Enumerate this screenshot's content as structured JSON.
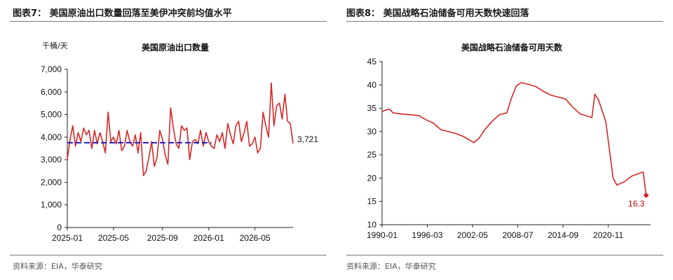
{
  "figures": {
    "left": {
      "caption": "图表7：  美国原油出口数量回落至美伊冲突前均值水平",
      "source": "资料来源：EIA，华泰研究"
    },
    "right": {
      "caption": "图表8：  美国战略石油储备可用天数快速回落",
      "source": "资料来源：EIA，华泰研究"
    }
  },
  "colors": {
    "line": "#d62728",
    "average": "#1f1fbf",
    "axis": "#222222"
  },
  "chart_data": [
    {
      "type": "line",
      "title": "美国原油出口数量",
      "ylabel": "千桶/天",
      "xlabel": "",
      "ylim": [
        0,
        7000
      ],
      "yticks": [
        "0",
        "1,000",
        "2,000",
        "3,000",
        "4,000",
        "5,000",
        "6,000",
        "7,000"
      ],
      "ytick_values": [
        0,
        1000,
        2000,
        3000,
        4000,
        5000,
        6000,
        7000
      ],
      "xlim": [
        0,
        83
      ],
      "xticks": [
        "2025-01",
        "2025-05",
        "2025-09",
        "2026-01",
        "2026-05"
      ],
      "xtick_values": [
        0,
        17,
        35,
        52,
        69
      ],
      "series": [
        {
          "style": "solid",
          "values": [
            3000,
            3900,
            4500,
            3600,
            4200,
            3800,
            4400,
            4100,
            4300,
            3500,
            4300,
            3700,
            4200,
            3800,
            3300,
            5100,
            3800,
            4000,
            3700,
            4300,
            3400,
            3600,
            4300,
            3800,
            3600,
            4100,
            3300,
            4200,
            2300,
            2500,
            3100,
            3800,
            2700,
            3100,
            4300,
            3900,
            3200,
            2800,
            5300,
            4400,
            3700,
            3500,
            4500,
            4300,
            4400,
            3000,
            3800,
            3900,
            3700,
            4300,
            3600,
            4200,
            3800,
            3600,
            3500,
            4100,
            3800,
            4200,
            3500,
            4600,
            4100,
            3700,
            4500,
            4700,
            3800,
            4200,
            4700,
            3600,
            3700,
            4000,
            3300,
            3500,
            5100,
            4500,
            4000,
            6400,
            4500,
            5400,
            5500,
            4800,
            5900,
            4700,
            4600,
            3721
          ]
        },
        {
          "style": "dashed-average",
          "x_range": [
            0,
            53
          ],
          "value": 3750
        }
      ],
      "annotations": [
        {
          "text": "3,721"
        }
      ]
    },
    {
      "type": "line",
      "title": "美国战略石油储备可用天数",
      "ylim": [
        10,
        45
      ],
      "yticks": [
        "10",
        "15",
        "20",
        "25",
        "30",
        "35",
        "40",
        "45"
      ],
      "ytick_values": [
        10,
        15,
        20,
        25,
        30,
        35,
        40,
        45
      ],
      "xlim": [
        1990.0,
        2026.6
      ],
      "xticks": [
        "1990-01",
        "1996-03",
        "2002-05",
        "2008-07",
        "2014-09",
        "2020-11"
      ],
      "xtick_values": [
        1990.0,
        1996.17,
        2002.33,
        2008.5,
        2014.67,
        2020.83
      ],
      "series": [
        {
          "style": "solid",
          "points": [
            [
              1990.0,
              34.3
            ],
            [
              1990.5,
              34.6
            ],
            [
              1991.0,
              34.8
            ],
            [
              1991.5,
              34.0
            ],
            [
              1992.0,
              33.9
            ],
            [
              1993.0,
              33.7
            ],
            [
              1994.0,
              33.6
            ],
            [
              1995.0,
              33.4
            ],
            [
              1996.0,
              32.5
            ],
            [
              1997.0,
              31.8
            ],
            [
              1998.0,
              30.4
            ],
            [
              1999.0,
              30.0
            ],
            [
              2000.0,
              29.6
            ],
            [
              2001.0,
              29.0
            ],
            [
              2002.0,
              28.1
            ],
            [
              2002.5,
              27.6
            ],
            [
              2003.2,
              28.5
            ],
            [
              2004.0,
              30.4
            ],
            [
              2005.0,
              32.2
            ],
            [
              2006.0,
              33.6
            ],
            [
              2007.0,
              34.0
            ],
            [
              2007.6,
              37.0
            ],
            [
              2008.3,
              39.8
            ],
            [
              2009.0,
              40.5
            ],
            [
              2010.0,
              40.1
            ],
            [
              2011.0,
              39.6
            ],
            [
              2012.0,
              38.6
            ],
            [
              2013.0,
              37.8
            ],
            [
              2014.0,
              37.4
            ],
            [
              2015.0,
              37.0
            ],
            [
              2016.0,
              35.2
            ],
            [
              2017.0,
              33.8
            ],
            [
              2018.0,
              33.3
            ],
            [
              2018.6,
              33.0
            ],
            [
              2019.0,
              38.0
            ],
            [
              2019.5,
              36.8
            ],
            [
              2020.0,
              34.5
            ],
            [
              2020.5,
              32.0
            ],
            [
              2021.0,
              26.0
            ],
            [
              2021.5,
              20.0
            ],
            [
              2022.0,
              18.5
            ],
            [
              2023.0,
              19.2
            ],
            [
              2024.0,
              20.4
            ],
            [
              2025.0,
              21.0
            ],
            [
              2025.6,
              21.3
            ],
            [
              2026.0,
              16.3
            ]
          ]
        }
      ],
      "annotations": [
        {
          "text": "16.3"
        }
      ]
    }
  ]
}
